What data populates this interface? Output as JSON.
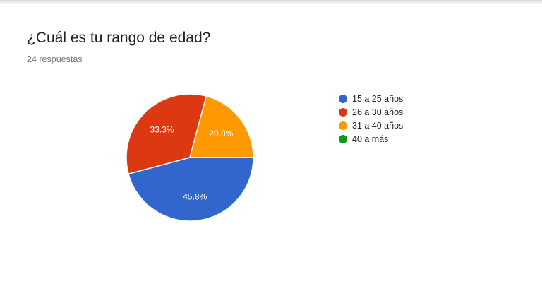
{
  "form": {
    "question": "¿Cuál es tu rango de edad?",
    "responses": "24 respuestas"
  },
  "chart_data": {
    "type": "pie",
    "categories": [
      "15 a 25 años",
      "26 a 30 años",
      "31 a 40 años",
      "40 a más"
    ],
    "values": [
      45.8,
      33.3,
      20.8,
      0
    ],
    "labels": [
      "45.8%",
      "33.3%",
      "20.8%",
      ""
    ],
    "colors": [
      "#3366cc",
      "#dc3912",
      "#ff9900",
      "#109618"
    ],
    "legend_position": "right"
  }
}
